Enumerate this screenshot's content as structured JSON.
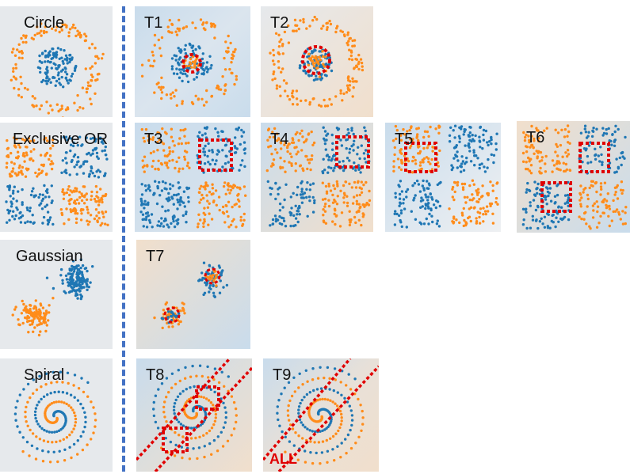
{
  "datasets": [
    {
      "id": "circle",
      "label": "Circle"
    },
    {
      "id": "xor",
      "label": "Exclusive OR"
    },
    {
      "id": "gaussian",
      "label": "Gaussian"
    },
    {
      "id": "spiral",
      "label": "Spiral"
    }
  ],
  "tasks": [
    {
      "id": "t1",
      "label": "T1",
      "dataset": "circle"
    },
    {
      "id": "t2",
      "label": "T2",
      "dataset": "circle"
    },
    {
      "id": "t3",
      "label": "T3",
      "dataset": "xor"
    },
    {
      "id": "t4",
      "label": "T4",
      "dataset": "xor"
    },
    {
      "id": "t5",
      "label": "T5",
      "dataset": "xor"
    },
    {
      "id": "t6",
      "label": "T6",
      "dataset": "xor"
    },
    {
      "id": "t7",
      "label": "T7",
      "dataset": "gaussian"
    },
    {
      "id": "t8",
      "label": "T8",
      "dataset": "spiral"
    },
    {
      "id": "t9",
      "label": "T9",
      "dataset": "spiral"
    }
  ],
  "annotations": {
    "all_label": "ALL"
  },
  "colors": {
    "class_a": "#1f77b4",
    "class_b": "#ff8c1a",
    "highlight": "#e00000",
    "separator": "#4472c4",
    "bg_neutral": "#e6e9ec",
    "bg_blue": "#c9dcec",
    "bg_orange": "#f1dfcc"
  }
}
